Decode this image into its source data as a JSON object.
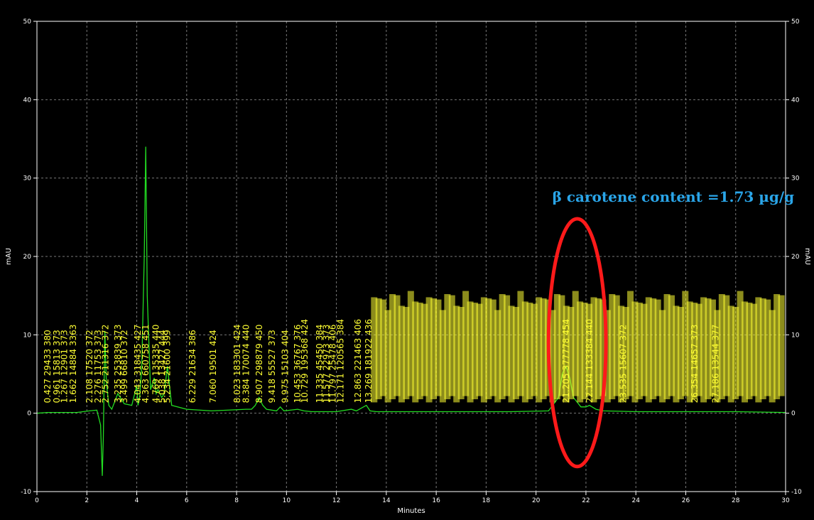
{
  "chart_data": {
    "type": "line",
    "title": "",
    "xlabel": "Minutes",
    "ylabel": "mAU",
    "ylabel_right": "mAU",
    "xlim": [
      0,
      30
    ],
    "ylim": [
      -10,
      50
    ],
    "x_ticks": [
      0,
      2,
      4,
      6,
      8,
      10,
      12,
      14,
      16,
      18,
      20,
      22,
      24,
      26,
      28,
      30
    ],
    "y_ticks": [
      -10,
      0,
      10,
      20,
      30,
      40,
      50
    ],
    "grid": true,
    "colors": {
      "background": "#000000",
      "frame": "#ffffff",
      "grid": "#777777",
      "trace": "#22dd22",
      "labels": "#ffff33",
      "annotation": "#2aa5e8",
      "highlight": "#ff1a1a"
    },
    "series": [
      {
        "name": "",
        "x": [
          0,
          0.43,
          1.6,
          2.1,
          2.4,
          2.55,
          2.62,
          2.66,
          2.72,
          2.78,
          2.88,
          3.0,
          3.24,
          3.5,
          3.8,
          4.0,
          4.05,
          4.12,
          4.2,
          4.3,
          4.36,
          4.42,
          4.55,
          4.7,
          4.78,
          4.85,
          5.0,
          5.1,
          5.23,
          5.4,
          6.0,
          7.0,
          8.38,
          8.6,
          8.75,
          8.9,
          9.05,
          9.2,
          9.6,
          9.75,
          9.9,
          10.45,
          10.7,
          11.0,
          12.0,
          12.6,
          12.8,
          13.2,
          13.35,
          13.6,
          15.0,
          17.0,
          19.0,
          20.5,
          20.9,
          21.05,
          21.2,
          21.35,
          21.5,
          21.8,
          22.0,
          22.14,
          22.4,
          22.7,
          24.0,
          26.0,
          28.0,
          30.0
        ],
        "y": [
          0,
          0.1,
          0.1,
          0.3,
          0.4,
          -1.5,
          -8.0,
          -3.0,
          10.5,
          4.0,
          1.0,
          0.5,
          2.5,
          1.2,
          1.0,
          3.5,
          1.0,
          2.0,
          6.0,
          20.0,
          34.0,
          15.0,
          3.0,
          4.5,
          2.5,
          3.0,
          2.0,
          2.5,
          6.0,
          1.0,
          0.5,
          0.3,
          0.5,
          0.5,
          1.0,
          2.0,
          1.0,
          0.5,
          0.3,
          0.8,
          0.3,
          0.5,
          0.3,
          0.2,
          0.2,
          0.5,
          0.3,
          1.0,
          0.3,
          0.2,
          0.2,
          0.2,
          0.2,
          0.3,
          2.0,
          5.0,
          6.0,
          4.5,
          2.0,
          0.8,
          0.8,
          1.0,
          0.5,
          0.3,
          0.2,
          0.2,
          0.2,
          0.1
        ]
      }
    ],
    "peak_labels": [
      {
        "x": 0.43,
        "text": "0.427  29433  380"
      },
      {
        "x": 0.8,
        "text": "0.961  15813  373"
      },
      {
        "x": 1.1,
        "text": "1.267  12901  373"
      },
      {
        "x": 1.45,
        "text": "1.662  14884  3363"
      },
      {
        "x": 2.1,
        "text": "2.108  17520  372"
      },
      {
        "x": 2.45,
        "text": "2.276  11753  373"
      },
      {
        "x": 2.75,
        "text": "2.752  211316  372"
      },
      {
        "x": 3.24,
        "text": "3.235  253839  373"
      },
      {
        "x": 3.5,
        "text": "3.499  66810  372"
      },
      {
        "x": 4.04,
        "text": "4.043  318435  427"
      },
      {
        "x": 4.36,
        "text": "4.363  660758  451"
      },
      {
        "x": 4.77,
        "text": "4.769  135335  440"
      },
      {
        "x": 5.03,
        "text": "5.038  13427  444"
      },
      {
        "x": 5.23,
        "text": "5.234  21600  399"
      },
      {
        "x": 6.23,
        "text": "6.229  21634  386"
      },
      {
        "x": 7.06,
        "text": "7.060  19501  424"
      },
      {
        "x": 8.02,
        "text": "8.023  183301  424"
      },
      {
        "x": 8.38,
        "text": "8.384  170074  440"
      },
      {
        "x": 8.91,
        "text": "8.907  298879  450"
      },
      {
        "x": 9.42,
        "text": "9.418  55527  373"
      },
      {
        "x": 9.95,
        "text": "9.975  15103  404"
      },
      {
        "x": 10.45,
        "text": "10.453  36767  376"
      },
      {
        "x": 10.73,
        "text": "10.729  195368  424"
      },
      {
        "x": 11.33,
        "text": "11.335  45450  384"
      },
      {
        "x": 11.6,
        "text": "11.577  22973  373"
      },
      {
        "x": 11.85,
        "text": "11.797  25478  406"
      },
      {
        "x": 12.17,
        "text": "12.171  120565  384"
      },
      {
        "x": 12.86,
        "text": "12.863  221463  406"
      },
      {
        "x": 13.29,
        "text": "13.269  181922  436"
      },
      {
        "x": 21.21,
        "text": "21.205  377778  454"
      },
      {
        "x": 22.14,
        "text": "22.144  133384  440"
      },
      {
        "x": 23.5,
        "text": "23.535  15607  372"
      },
      {
        "x": 26.35,
        "text": "26.354  14657  373"
      },
      {
        "x": 27.19,
        "text": "27.186  13544  377"
      }
    ],
    "dense_label_region": {
      "from": 13.5,
      "to": 30.0,
      "count": 90
    },
    "annotation": {
      "text": "β carotene content =1.73 µg/g",
      "x": 25.5,
      "y": 27,
      "highlight": {
        "center_x": 21.65,
        "center_y": 9,
        "rx_min": 1.15,
        "ry_mau": 15.8
      }
    }
  }
}
